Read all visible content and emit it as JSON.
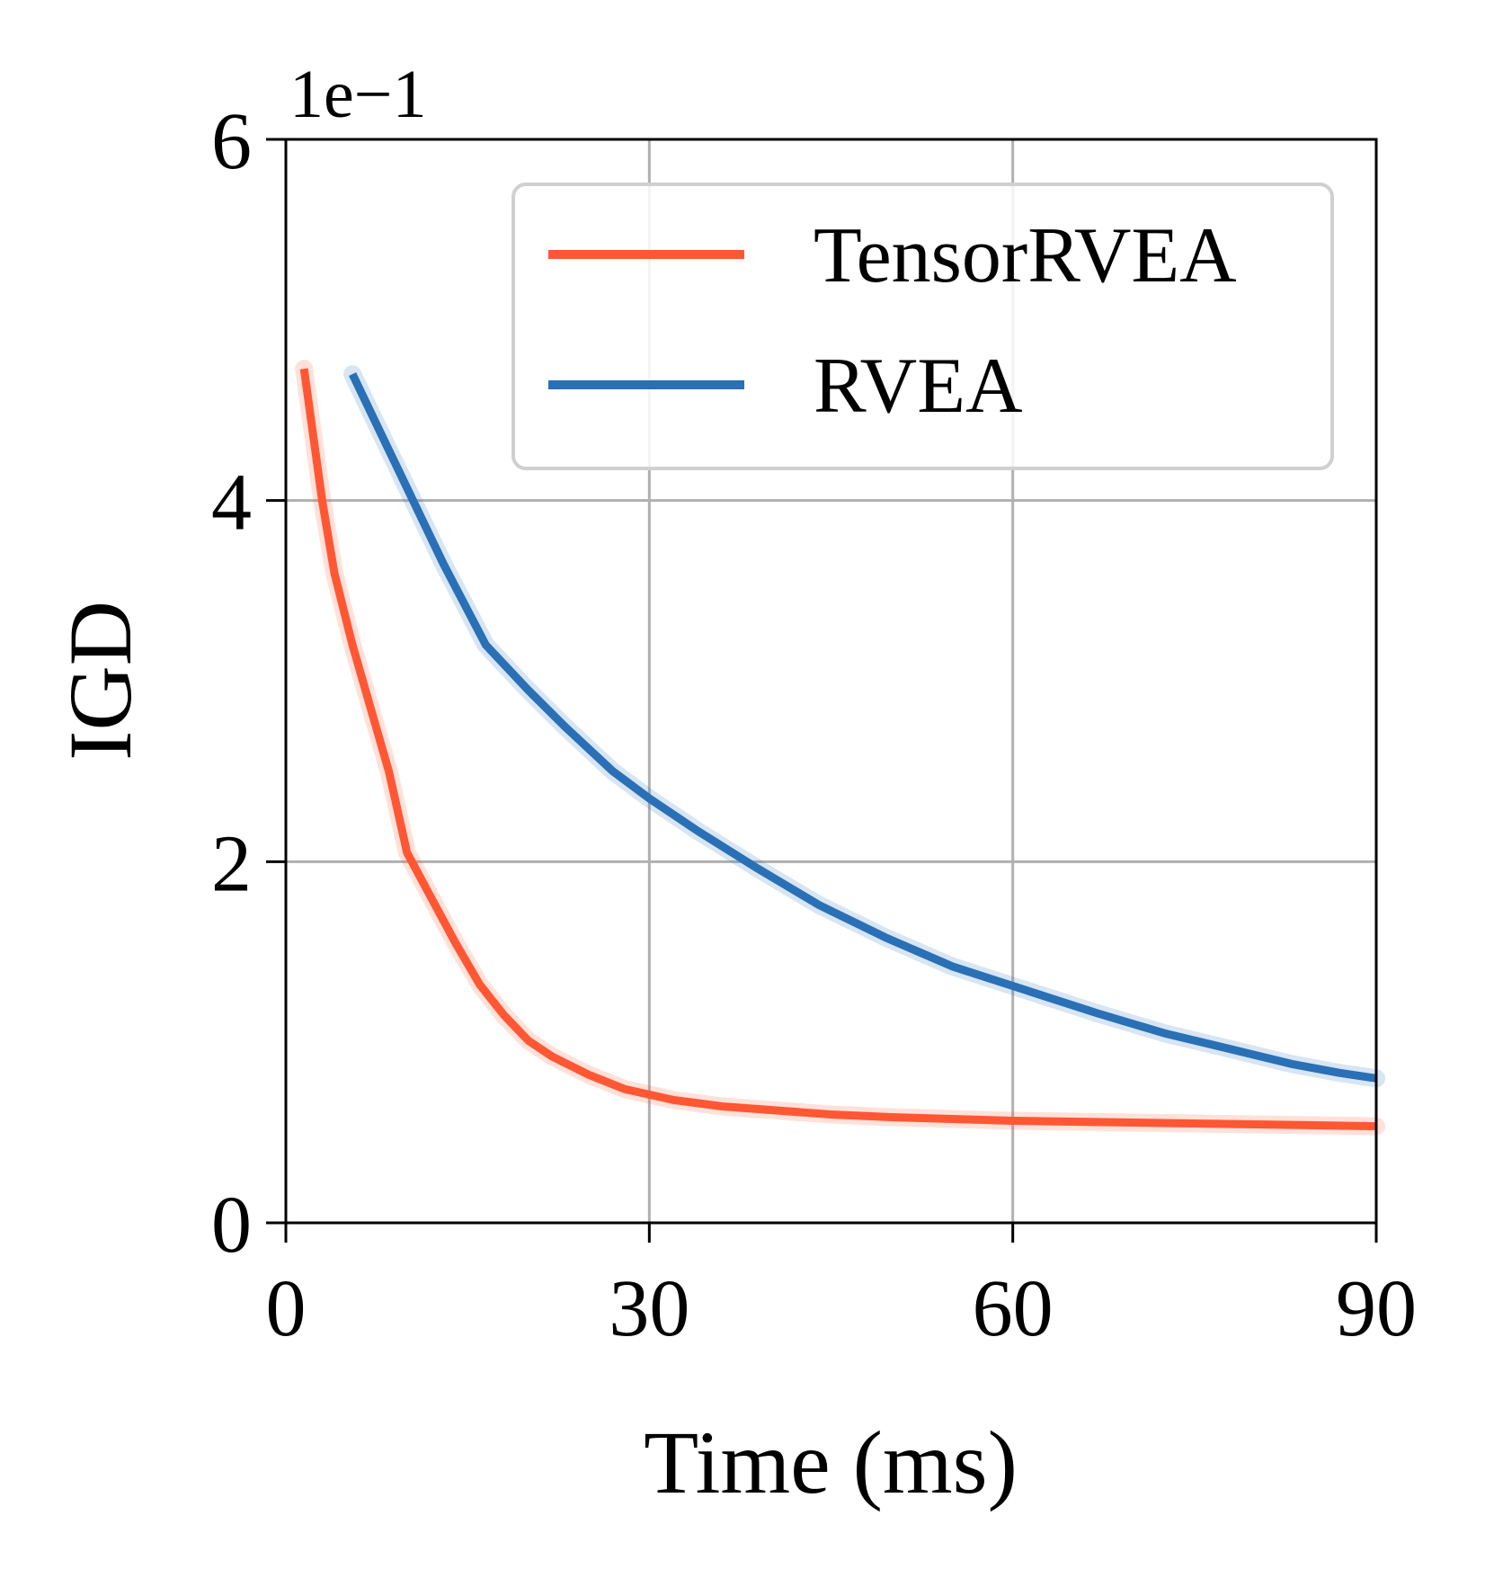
{
  "chart_data": {
    "type": "line",
    "xlabel": "Time (ms)",
    "ylabel": "IGD",
    "y_offset_text": "1e−1",
    "xlim": [
      0,
      90
    ],
    "ylim": [
      0,
      6
    ],
    "x_ticks": [
      0,
      30,
      60,
      90
    ],
    "y_ticks": [
      0,
      2,
      4,
      6
    ],
    "x_tick_labels": [
      "0",
      "30",
      "60",
      "90"
    ],
    "y_tick_labels": [
      "0",
      "2",
      "4",
      "6"
    ],
    "grid": true,
    "legend_position": "upper right",
    "series": [
      {
        "name": "TensorRVEA",
        "color": "#FF5733",
        "x": [
          1.5,
          3,
          4,
          5.5,
          7,
          8.5,
          10,
          12,
          14,
          16,
          18,
          20,
          22,
          25,
          28,
          32,
          36,
          40,
          45,
          50,
          55,
          60,
          65,
          70,
          75,
          80,
          85,
          90
        ],
        "y": [
          4.73,
          4.0,
          3.6,
          3.2,
          2.85,
          2.5,
          2.05,
          1.8,
          1.55,
          1.32,
          1.15,
          1.01,
          0.92,
          0.82,
          0.74,
          0.68,
          0.645,
          0.625,
          0.6,
          0.585,
          0.575,
          0.565,
          0.56,
          0.555,
          0.55,
          0.545,
          0.54,
          0.535
        ]
      },
      {
        "name": "RVEA",
        "color": "#2970B6",
        "x": [
          5.5,
          8,
          10.5,
          13,
          16.5,
          20,
          23,
          27,
          30,
          34,
          39,
          44,
          49.5,
          55,
          61,
          67,
          72.5,
          77.5,
          83,
          87,
          90
        ],
        "y": [
          4.7,
          4.35,
          4.0,
          3.65,
          3.2,
          2.95,
          2.75,
          2.5,
          2.35,
          2.17,
          1.96,
          1.76,
          1.58,
          1.42,
          1.29,
          1.16,
          1.05,
          0.97,
          0.88,
          0.83,
          0.8
        ]
      }
    ]
  }
}
